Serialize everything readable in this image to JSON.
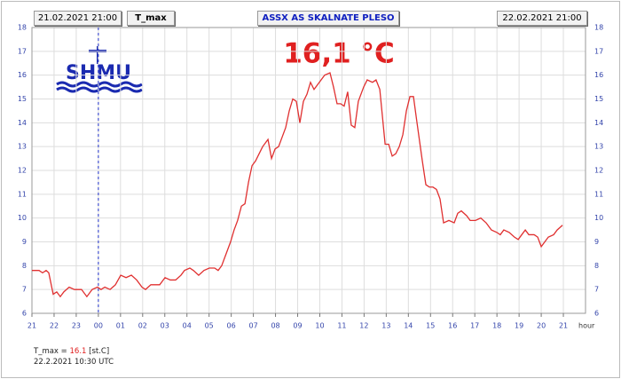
{
  "header": {
    "start": "21.02.2021 21:00",
    "variable": "T_max",
    "station": "ASSX AS SKALNATE PLESO",
    "end": "22.02.2021 21:00"
  },
  "logo": {
    "text": "SHMU"
  },
  "footer": {
    "label": "T_max =",
    "value": "16.1",
    "unit": "[st.C]",
    "timestamp": "22.2.2021 10:30 UTC"
  },
  "chart_data": {
    "type": "line",
    "annotation": "16,1 °C",
    "x_axis_label": "hour",
    "xlim": [
      0,
      25
    ],
    "ylim": [
      6,
      18
    ],
    "yticks": [
      6,
      7,
      8,
      9,
      10,
      11,
      12,
      13,
      14,
      15,
      16,
      17,
      18
    ],
    "xticks": [
      {
        "value": 0,
        "label": "21"
      },
      {
        "value": 1,
        "label": "22"
      },
      {
        "value": 2,
        "label": "23"
      },
      {
        "value": 3,
        "label": "00"
      },
      {
        "value": 4,
        "label": "01"
      },
      {
        "value": 5,
        "label": "02"
      },
      {
        "value": 6,
        "label": "03"
      },
      {
        "value": 7,
        "label": "04"
      },
      {
        "value": 8,
        "label": "05"
      },
      {
        "value": 9,
        "label": "06"
      },
      {
        "value": 10,
        "label": "07"
      },
      {
        "value": 11,
        "label": "08"
      },
      {
        "value": 12,
        "label": "09"
      },
      {
        "value": 13,
        "label": "10"
      },
      {
        "value": 14,
        "label": "11"
      },
      {
        "value": 15,
        "label": "12"
      },
      {
        "value": 16,
        "label": "13"
      },
      {
        "value": 17,
        "label": "14"
      },
      {
        "value": 18,
        "label": "15"
      },
      {
        "value": 19,
        "label": "16"
      },
      {
        "value": 20,
        "label": "17"
      },
      {
        "value": 21,
        "label": "18"
      },
      {
        "value": 22,
        "label": "19"
      },
      {
        "value": 23,
        "label": "20"
      },
      {
        "value": 24,
        "label": "21"
      }
    ],
    "day_boundary_x": 3,
    "grid": true,
    "x": [
      0,
      0.32,
      0.48,
      0.64,
      0.76,
      0.96,
      1.12,
      1.28,
      1.44,
      1.68,
      1.92,
      2.24,
      2.48,
      2.72,
      2.96,
      3.12,
      3.29,
      3.53,
      3.77,
      4.01,
      4.25,
      4.49,
      4.73,
      4.97,
      5.13,
      5.37,
      5.77,
      6.01,
      6.25,
      6.49,
      6.73,
      6.89,
      7.13,
      7.29,
      7.53,
      7.77,
      8.01,
      8.25,
      8.41,
      8.57,
      8.81,
      8.97,
      9.13,
      9.29,
      9.46,
      9.62,
      9.78,
      9.94,
      10.1,
      10.26,
      10.42,
      10.66,
      10.82,
      10.98,
      11.14,
      11.3,
      11.46,
      11.62,
      11.78,
      11.94,
      12.1,
      12.26,
      12.42,
      12.58,
      12.74,
      12.9,
      13.06,
      13.22,
      13.46,
      13.62,
      13.78,
      13.94,
      14.1,
      14.26,
      14.42,
      14.58,
      14.74,
      14.98,
      15.14,
      15.38,
      15.54,
      15.71,
      15.95,
      16.11,
      16.27,
      16.43,
      16.59,
      16.75,
      16.91,
      17.07,
      17.23,
      17.39,
      17.63,
      17.79,
      17.95,
      18.11,
      18.27,
      18.43,
      18.59,
      18.83,
      19.07,
      19.23,
      19.39,
      19.63,
      19.79,
      20.03,
      20.27,
      20.51,
      20.75,
      20.99,
      21.15,
      21.31,
      21.55,
      21.79,
      21.96,
      22.12,
      22.28,
      22.44,
      22.68,
      22.84,
      23.0,
      23.16,
      23.32,
      23.56,
      23.72,
      23.96
    ],
    "series": [
      {
        "name": "T_max",
        "color": "#e03030",
        "values": [
          7.8,
          7.8,
          7.7,
          7.8,
          7.7,
          6.8,
          6.9,
          6.7,
          6.9,
          7.1,
          7.0,
          7.0,
          6.7,
          7.0,
          7.1,
          7.0,
          7.1,
          7.0,
          7.2,
          7.6,
          7.5,
          7.6,
          7.4,
          7.1,
          7.0,
          7.2,
          7.2,
          7.5,
          7.4,
          7.4,
          7.6,
          7.8,
          7.9,
          7.8,
          7.6,
          7.8,
          7.9,
          7.9,
          7.8,
          8.0,
          8.6,
          9.0,
          9.5,
          9.9,
          10.5,
          10.6,
          11.5,
          12.2,
          12.4,
          12.7,
          13.0,
          13.3,
          12.5,
          12.9,
          13.0,
          13.4,
          13.8,
          14.5,
          15.0,
          14.9,
          14.0,
          14.9,
          15.2,
          15.7,
          15.4,
          15.6,
          15.8,
          16.0,
          16.1,
          15.5,
          14.8,
          14.8,
          14.7,
          15.3,
          13.9,
          13.8,
          14.9,
          15.5,
          15.8,
          15.7,
          15.8,
          15.4,
          13.1,
          13.1,
          12.6,
          12.7,
          13.0,
          13.5,
          14.5,
          15.1,
          15.1,
          14.0,
          12.4,
          11.4,
          11.3,
          11.3,
          11.2,
          10.8,
          9.8,
          9.9,
          9.8,
          10.2,
          10.3,
          10.1,
          9.9,
          9.9,
          10.0,
          9.8,
          9.5,
          9.4,
          9.3,
          9.5,
          9.4,
          9.2,
          9.1,
          9.3,
          9.5,
          9.3,
          9.3,
          9.2,
          8.8,
          9.0,
          9.2,
          9.3,
          9.5,
          9.7
        ]
      }
    ]
  }
}
